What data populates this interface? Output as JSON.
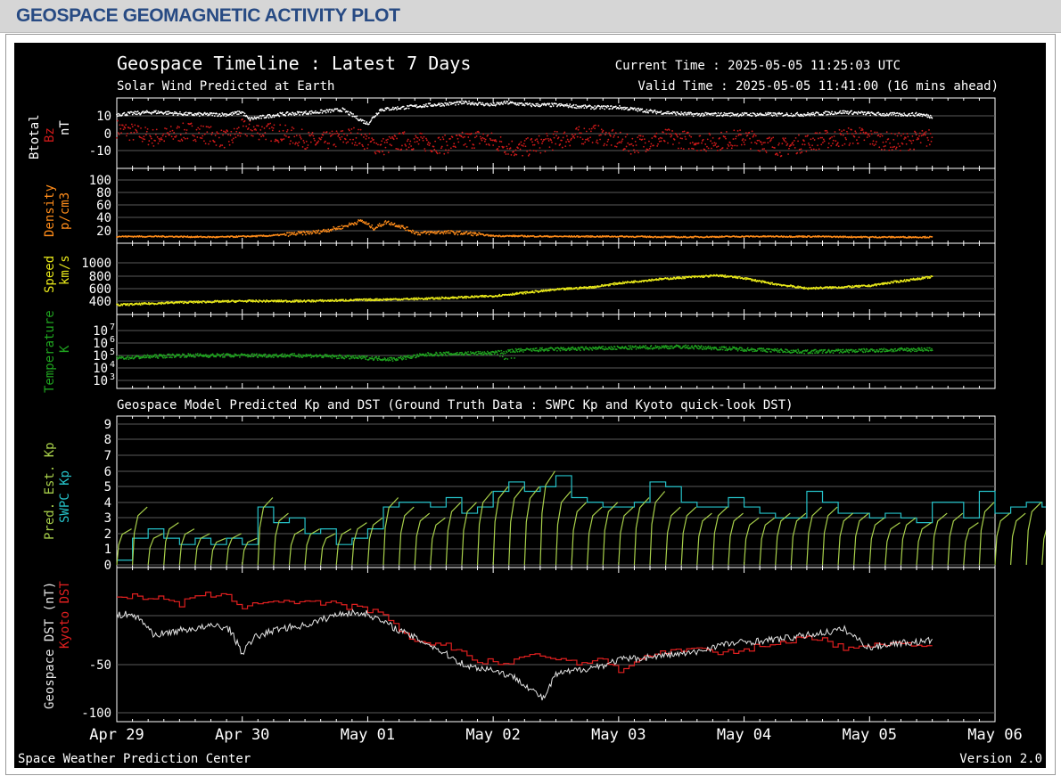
{
  "page": {
    "title": "GEOSPACE GEOMAGNETIC ACTIVITY PLOT"
  },
  "plot": {
    "title": "Geospace Timeline : Latest 7 Days",
    "subtitle": "Solar Wind Predicted at Earth",
    "current_time": "Current Time : 2025-05-05 11:25:03 UTC",
    "valid_time": "Valid Time : 2025-05-05 11:41:00 (16 mins ahead)",
    "model_title": "Geospace Model Predicted Kp and DST (Ground Truth Data : SWPC Kp and Kyoto quick-look DST)",
    "footer_left": "Space Weather Prediction Center",
    "footer_right": "Version 2.0",
    "colors": {
      "background": "#000000",
      "btotal": "#ffffff",
      "bz": "#d11a1a",
      "density": "#ff8c1a",
      "speed": "#e8e81a",
      "temperature": "#1fa31f",
      "pred_kp": "#a8d04a",
      "swpc_kp": "#25c1c8",
      "geospace_dst": "#e6e6e6",
      "kyoto_dst": "#e01f1f",
      "header_bg": "#d6d6d6",
      "header_text": "#274a83"
    }
  },
  "chart_data": [
    {
      "type": "scatter",
      "panel": "magnetic-field",
      "ylabels": [
        "Btotal",
        "Bz",
        "nT"
      ],
      "yticks": [
        "10",
        "0",
        "-10"
      ],
      "ylim": [
        -15,
        15
      ],
      "x_range": [
        "Apr 29",
        "May 06"
      ],
      "series": [
        {
          "name": "Btotal",
          "x_days": [
            0.0,
            0.3,
            0.6,
            0.9,
            1.0,
            1.05,
            1.3,
            1.6,
            1.8,
            2.0,
            2.1,
            2.3,
            2.5,
            2.8,
            3.0,
            3.1,
            3.3,
            3.5,
            3.8,
            4.0,
            4.3,
            4.6,
            4.9,
            5.2,
            5.5,
            5.8,
            6.1,
            6.4,
            6.5
          ],
          "values": [
            8,
            9,
            8,
            8,
            9,
            6,
            8,
            9,
            10,
            4,
            10,
            11,
            12,
            13,
            12,
            13,
            12,
            12,
            11,
            11,
            9,
            8,
            8,
            8,
            8,
            9,
            8,
            8,
            7
          ]
        },
        {
          "name": "Bz",
          "x_days": [
            0.0,
            0.3,
            0.6,
            0.9,
            1.0,
            1.3,
            1.6,
            1.9,
            2.1,
            2.3,
            2.6,
            2.9,
            3.2,
            3.5,
            3.8,
            4.1,
            4.4,
            4.7,
            5.0,
            5.3,
            5.6,
            5.9,
            6.2,
            6.5
          ],
          "values": [
            2,
            -2,
            1,
            -3,
            2,
            0,
            -4,
            -1,
            -6,
            -3,
            -5,
            -2,
            -7,
            -3,
            0,
            -5,
            -2,
            -4,
            -2,
            -6,
            -3,
            -1,
            -4,
            -2
          ]
        }
      ]
    },
    {
      "type": "scatter",
      "panel": "density",
      "ylabels": [
        "Density",
        "p/cm3"
      ],
      "yticks": [
        "100",
        "80",
        "60",
        "40",
        "20"
      ],
      "ylim": [
        0,
        110
      ],
      "series": [
        {
          "name": "Density",
          "x_days": [
            0.0,
            0.4,
            0.8,
            1.2,
            1.6,
            1.8,
            1.95,
            2.05,
            2.15,
            2.25,
            2.4,
            2.6,
            2.8,
            3.0,
            3.5,
            4.0,
            4.5,
            5.0,
            5.5,
            6.0,
            6.5
          ],
          "values": [
            5,
            5,
            4,
            6,
            12,
            20,
            30,
            18,
            28,
            22,
            10,
            12,
            10,
            6,
            5,
            5,
            4,
            5,
            5,
            4,
            4
          ]
        }
      ]
    },
    {
      "type": "scatter",
      "panel": "speed",
      "ylabels": [
        "Speed",
        "km/s"
      ],
      "yticks": [
        "1000",
        "800",
        "600",
        "400"
      ],
      "ylim": [
        250,
        1100
      ],
      "series": [
        {
          "name": "Speed",
          "x_days": [
            0.0,
            0.5,
            1.0,
            1.5,
            2.0,
            2.5,
            3.0,
            3.5,
            3.8,
            4.0,
            4.3,
            4.6,
            4.8,
            5.0,
            5.2,
            5.5,
            5.8,
            6.0,
            6.2,
            6.5
          ],
          "values": [
            340,
            380,
            400,
            400,
            420,
            440,
            480,
            580,
            620,
            680,
            740,
            780,
            800,
            760,
            680,
            600,
            620,
            640,
            700,
            780
          ]
        }
      ]
    },
    {
      "type": "scatter",
      "panel": "temperature",
      "ylabels": [
        "Temperature",
        "K"
      ],
      "yticks": [
        "10^7",
        "10^6",
        "10^5",
        "10^4",
        "10^3"
      ],
      "ylim_log10": [
        2.5,
        7.5
      ],
      "series": [
        {
          "name": "Temperature",
          "x_log10_days": [
            0.0,
            0.5,
            1.0,
            1.5,
            2.0,
            2.2,
            2.5,
            3.0,
            3.2,
            3.5,
            4.0,
            4.5,
            5.0,
            5.5,
            6.0,
            6.5
          ],
          "log10_values": [
            4.8,
            5.0,
            5.0,
            5.0,
            4.8,
            4.7,
            5.1,
            5.2,
            5.4,
            5.5,
            5.6,
            5.7,
            5.5,
            5.3,
            5.4,
            5.5
          ]
        }
      ]
    },
    {
      "type": "line",
      "panel": "kp",
      "ylabels": [
        "Pred. Est. Kp",
        "SWPC Kp"
      ],
      "yticks": [
        "9",
        "8",
        "7",
        "6",
        "5",
        "4",
        "3",
        "2",
        "1",
        "0"
      ],
      "ylim": [
        0,
        9
      ],
      "series": [
        {
          "name": "SWPC Kp",
          "step_hours": 3,
          "start_day": 0,
          "values": [
            0.3,
            1.7,
            2.3,
            1.7,
            1.3,
            1.7,
            1.3,
            1.7,
            1.3,
            3.7,
            2.7,
            3.0,
            2.0,
            2.3,
            1.3,
            1.7,
            2.3,
            3.7,
            4.0,
            4.0,
            3.7,
            4.3,
            3.3,
            3.7,
            4.7,
            5.3,
            4.7,
            5.0,
            5.7,
            4.3,
            4.0,
            3.7,
            3.7,
            4.0,
            5.3,
            5.0,
            4.0,
            3.7,
            3.7,
            4.3,
            3.7,
            3.3,
            3.0,
            3.0,
            4.7,
            4.0,
            3.3,
            3.3,
            3.0,
            3.3,
            3.0,
            2.7,
            4.0,
            4.0,
            3.0,
            4.7,
            3.3,
            3.7,
            4.0,
            3.7,
            4.7,
            4.7,
            4.3
          ]
        },
        {
          "name": "Pred. Est. Kp",
          "step_hours": 3,
          "start_day": 0,
          "values": [
            2.3,
            3.7,
            2.0,
            2.7,
            2.3,
            2.0,
            1.7,
            2.0,
            1.7,
            4.3,
            3.3,
            2.3,
            2.3,
            2.0,
            2.3,
            2.7,
            3.0,
            4.3,
            3.7,
            3.3,
            3.0,
            4.0,
            4.0,
            4.7,
            5.0,
            5.0,
            5.0,
            6.0,
            4.7,
            4.0,
            3.7,
            4.0,
            3.7,
            4.3,
            4.7,
            3.7,
            3.7,
            3.3,
            3.7,
            3.3,
            3.0,
            3.0,
            3.3,
            3.3,
            3.7,
            3.7,
            3.3,
            3.3,
            3.0,
            2.7,
            3.0,
            2.7,
            3.3,
            3.3,
            2.7,
            4.0,
            3.3,
            3.3,
            4.0,
            3.0,
            3.3,
            3.0,
            3.3
          ]
        }
      ]
    },
    {
      "type": "line",
      "panel": "dst",
      "ylabels": [
        "Geospace DST (nT)",
        "Kyoto DST"
      ],
      "yticks": [
        "-50",
        "-100"
      ],
      "ylim": [
        -105,
        30
      ],
      "series": [
        {
          "name": "Kyoto DST",
          "x_days": [
            0.0,
            0.3,
            0.5,
            0.7,
            0.9,
            1.0,
            1.2,
            1.5,
            1.7,
            2.0,
            2.1,
            2.3,
            2.5,
            2.7,
            2.9,
            3.0,
            3.1,
            3.3,
            3.5,
            3.7,
            3.9,
            4.0,
            4.2,
            4.4,
            4.6,
            4.8,
            5.0,
            5.2,
            5.4,
            5.6,
            5.8,
            6.0,
            6.2,
            6.4,
            6.5
          ],
          "values": [
            20,
            18,
            12,
            22,
            18,
            10,
            15,
            14,
            12,
            6,
            2,
            -22,
            -28,
            -33,
            -50,
            -45,
            -52,
            -38,
            -44,
            -48,
            -46,
            -56,
            -42,
            -36,
            -33,
            -40,
            -34,
            -30,
            -24,
            -22,
            -35,
            -30,
            -26,
            -32,
            -28
          ]
        },
        {
          "name": "Geospace DST",
          "x_days": [
            0.0,
            0.1,
            0.2,
            0.3,
            0.5,
            0.7,
            0.8,
            0.9,
            1.0,
            1.1,
            1.3,
            1.5,
            1.8,
            2.0,
            2.1,
            2.3,
            2.5,
            2.7,
            2.8,
            3.0,
            3.2,
            3.4,
            3.5,
            3.7,
            3.9,
            4.0,
            4.2,
            4.4,
            4.6,
            4.8,
            5.0,
            5.2,
            5.4,
            5.6,
            5.8,
            6.0,
            6.2,
            6.4,
            6.5
          ],
          "values": [
            0,
            2,
            -5,
            -20,
            -15,
            -12,
            -10,
            -14,
            -38,
            -22,
            -13,
            -10,
            3,
            2,
            -5,
            -18,
            -30,
            -45,
            -52,
            -55,
            -65,
            -85,
            -60,
            -55,
            -50,
            -45,
            -43,
            -40,
            -38,
            -30,
            -27,
            -25,
            -22,
            -18,
            -14,
            -33,
            -28,
            -27,
            -25
          ]
        }
      ]
    },
    {
      "type": "axis",
      "x_labels": [
        "Apr 29",
        "Apr 30",
        "May 01",
        "May 02",
        "May 03",
        "May 04",
        "May 05",
        "May 06"
      ]
    }
  ]
}
